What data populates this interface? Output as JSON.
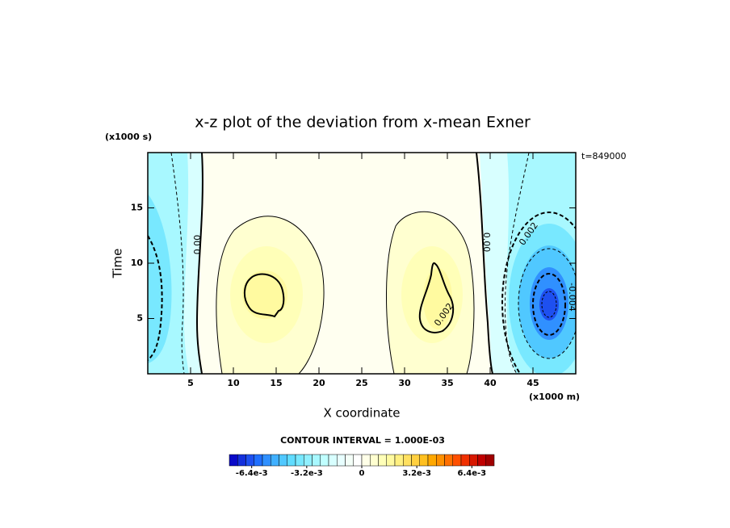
{
  "chart_data": {
    "type": "contour",
    "title": "x-z plot of the deviation from x-mean Exner",
    "x_label": "X coordinate",
    "y_label": "Time",
    "x_unit": "(x1000 m)",
    "y_unit": "(x1000 s)",
    "time_label": "t=849000",
    "contour_interval": "CONTOUR INTERVAL = 1.000E-03",
    "xlim": [
      0,
      50
    ],
    "ylim": [
      0,
      20
    ],
    "xticks": [
      5,
      10,
      15,
      20,
      25,
      30,
      35,
      40,
      45
    ],
    "yticks": [
      5,
      10,
      15
    ],
    "contour_labels": [
      "0.00",
      "0.00",
      "0.002",
      "0.002",
      "-0.004"
    ],
    "colorbar": {
      "lim": [
        -0.0077,
        0.0077
      ],
      "ticks": [
        {
          "value": -0.0064,
          "label": "-6.4e-3"
        },
        {
          "value": -0.0032,
          "label": "-3.2e-3"
        },
        {
          "value": 0,
          "label": "0"
        },
        {
          "value": 0.0032,
          "label": "3.2e-3"
        },
        {
          "value": 0.0064,
          "label": "6.4e-3"
        }
      ],
      "colors": [
        "#0a0ac8",
        "#1430dc",
        "#1e50f0",
        "#2070ff",
        "#3090ff",
        "#40b0ff",
        "#50c8ff",
        "#60dcff",
        "#78e8ff",
        "#90f0ff",
        "#a8f8ff",
        "#c0ffff",
        "#d8ffff",
        "#e8ffff",
        "#f4fff8",
        "#ffffff",
        "#ffffe8",
        "#ffffd0",
        "#ffffb8",
        "#fffaa0",
        "#fff080",
        "#ffe060",
        "#ffd040",
        "#ffc020",
        "#ffa800",
        "#ff9000",
        "#ff7000",
        "#ff5000",
        "#f03000",
        "#d81800",
        "#c00000",
        "#a00000"
      ]
    }
  }
}
